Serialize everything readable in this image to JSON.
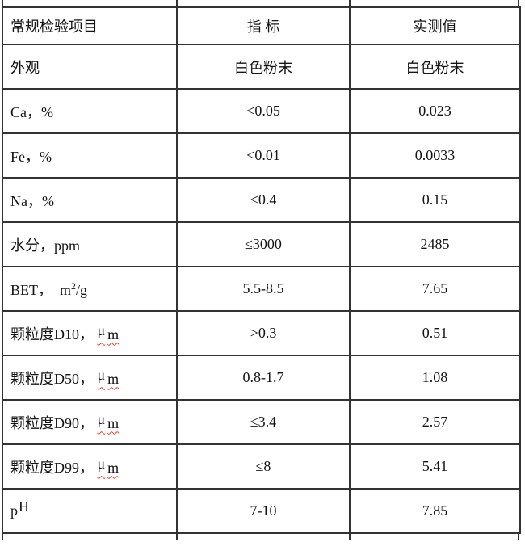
{
  "table": {
    "header": {
      "item": "常规检验项目",
      "spec": "指 标",
      "value": "实测值"
    },
    "rows": [
      {
        "pre": "外观",
        "spec": "白色粉末",
        "value": "白色粉末"
      },
      {
        "pre": "Ca，%",
        "spec": "<0.05",
        "value": "0.023"
      },
      {
        "pre": "Fe，%",
        "spec": "<0.01",
        "value": "0.0033"
      },
      {
        "pre": "Na，%",
        "spec": "<0.4",
        "value": "0.15"
      },
      {
        "pre": "水分，ppm",
        "spec": "≤3000",
        "value": "2485"
      },
      {
        "pre": "BET，  m",
        "sup": "2",
        "post": "/g",
        "spec": "5.5-8.5",
        "value": "7.65"
      },
      {
        "pre": "颗粒度D10， ",
        "mu": "μ",
        "unit": "m",
        "spec": ">0.3",
        "value": "0.51"
      },
      {
        "pre": "颗粒度D50， ",
        "mu": "μ",
        "unit": "m",
        "spec": "0.8-1.7",
        "value": "1.08"
      },
      {
        "pre": "颗粒度D90， ",
        "mu": "μ",
        "unit": "m",
        "spec": "≤3.4",
        "value": "2.57"
      },
      {
        "pre": "颗粒度D99， ",
        "mu": "μ",
        "unit": "m",
        "spec": "≤8",
        "value": "5.41"
      },
      {
        "pre": "p",
        "raised": "H",
        "spec": "7-10",
        "value": "7.85"
      }
    ],
    "colors": {
      "border": "#333333",
      "squiggle": "#e23b2e",
      "text": "#141414",
      "background": "#ffffff"
    }
  }
}
